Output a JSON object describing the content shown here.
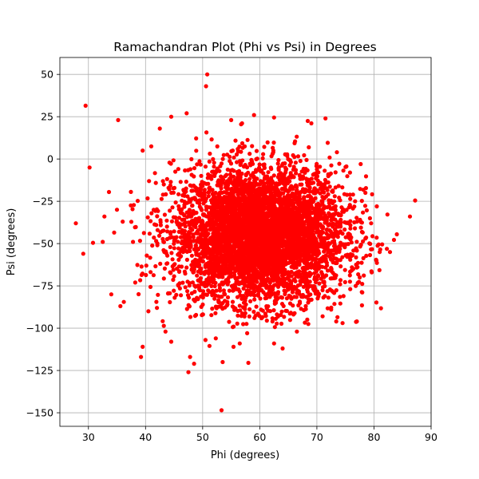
{
  "chart_data": {
    "type": "scatter",
    "title": "Ramachandran Plot (Phi vs Psi) in Degrees",
    "xlabel": "Phi (degrees)",
    "ylabel": "Psi (degrees)",
    "xlim": [
      25,
      90
    ],
    "ylim": [
      -158,
      60
    ],
    "xticks": [
      30,
      40,
      50,
      60,
      70,
      80,
      90
    ],
    "yticks": [
      -150,
      -125,
      -100,
      -75,
      -50,
      -25,
      0,
      25,
      50
    ],
    "grid": true,
    "marker_color": "#ff0000",
    "cluster": {
      "description_center": [
        60,
        -45
      ],
      "phi_std": 7.5,
      "psi_std": 20,
      "n_points": 5000
    },
    "points": [
      [
        29.5,
        31.5
      ],
      [
        50.8,
        50
      ],
      [
        50.6,
        43
      ],
      [
        30.2,
        -5
      ],
      [
        35.2,
        23
      ],
      [
        27.8,
        -38
      ],
      [
        29.1,
        -56
      ],
      [
        30.8,
        -49.5
      ],
      [
        32.5,
        -49
      ],
      [
        32.8,
        -34
      ],
      [
        33.6,
        -19.5
      ],
      [
        34,
        -80
      ],
      [
        35.6,
        -87
      ],
      [
        39.2,
        -117
      ],
      [
        39.5,
        -111
      ],
      [
        47.5,
        -126
      ],
      [
        48.5,
        -121
      ],
      [
        47.8,
        -117
      ],
      [
        53.5,
        -120
      ],
      [
        58,
        -120.5
      ],
      [
        53.3,
        -148.5
      ],
      [
        87.2,
        -24.5
      ],
      [
        86.3,
        -34
      ],
      [
        84,
        -44.5
      ],
      [
        83.5,
        -47.8
      ],
      [
        82.8,
        -55
      ],
      [
        81,
        -55
      ],
      [
        79.6,
        -67
      ],
      [
        77.5,
        -70
      ],
      [
        76.8,
        -75
      ],
      [
        75.8,
        -72.5
      ],
      [
        74.5,
        -97
      ],
      [
        73.4,
        -96
      ],
      [
        72.5,
        -89
      ],
      [
        71.4,
        -81
      ],
      [
        71.5,
        24
      ],
      [
        68.4,
        22.5
      ],
      [
        62.5,
        24.5
      ],
      [
        59,
        26
      ],
      [
        55,
        23
      ],
      [
        47.2,
        27
      ],
      [
        44.5,
        25
      ],
      [
        42.5,
        18
      ],
      [
        41,
        7.5
      ],
      [
        39.5,
        5
      ],
      [
        43.5,
        -102
      ],
      [
        44.5,
        -108
      ],
      [
        50.5,
        -107
      ],
      [
        51.2,
        -110.5
      ],
      [
        52.3,
        -106
      ],
      [
        55.4,
        -111
      ],
      [
        56.5,
        -109
      ],
      [
        57.8,
        -103
      ],
      [
        62.5,
        -109
      ],
      [
        64,
        -112
      ],
      [
        66.5,
        -102
      ],
      [
        68.5,
        -97.5
      ],
      [
        71,
        -93
      ],
      [
        36.2,
        -84.5
      ],
      [
        38.2,
        -73
      ],
      [
        37.8,
        -49
      ],
      [
        36,
        -37
      ],
      [
        35,
        -30
      ],
      [
        34.5,
        -43.5
      ],
      [
        73.5,
        4
      ],
      [
        75.8,
        -8
      ],
      [
        78.5,
        -20
      ],
      [
        80.5,
        -28
      ],
      [
        79.5,
        -38
      ],
      [
        78.5,
        -47
      ],
      [
        40.5,
        -90
      ],
      [
        42,
        -88
      ]
    ]
  }
}
